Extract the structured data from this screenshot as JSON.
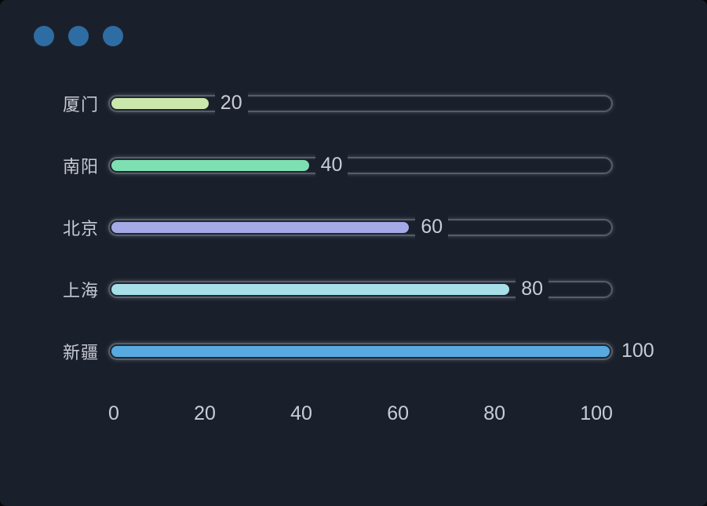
{
  "window": {
    "controls": [
      {
        "name": "window-control-dot-1"
      },
      {
        "name": "window-control-dot-2"
      },
      {
        "name": "window-control-dot-3"
      }
    ],
    "control_dot_color": "#2e6da4",
    "background_color": "#1a202b"
  },
  "colors": {
    "text": "#c9ccd6",
    "track_border": "#585e68",
    "page_background": "#05070b"
  },
  "chart_data": {
    "type": "bar",
    "orientation": "horizontal",
    "title": "",
    "xlabel": "",
    "ylabel": "",
    "categories": [
      "厦门",
      "南阳",
      "北京",
      "上海",
      "新疆"
    ],
    "values": [
      20,
      40,
      60,
      80,
      100
    ],
    "bar_colors": [
      "#cae8ab",
      "#7ee0b2",
      "#a5a9e5",
      "#a6dfe8",
      "#56aadf"
    ],
    "value_labels": [
      "20",
      "40",
      "60",
      "80",
      "100"
    ],
    "x_ticks": [
      "0",
      "20",
      "40",
      "60",
      "80",
      "100"
    ],
    "xlim": [
      0,
      100
    ],
    "grid": false,
    "legend_position": "none"
  }
}
